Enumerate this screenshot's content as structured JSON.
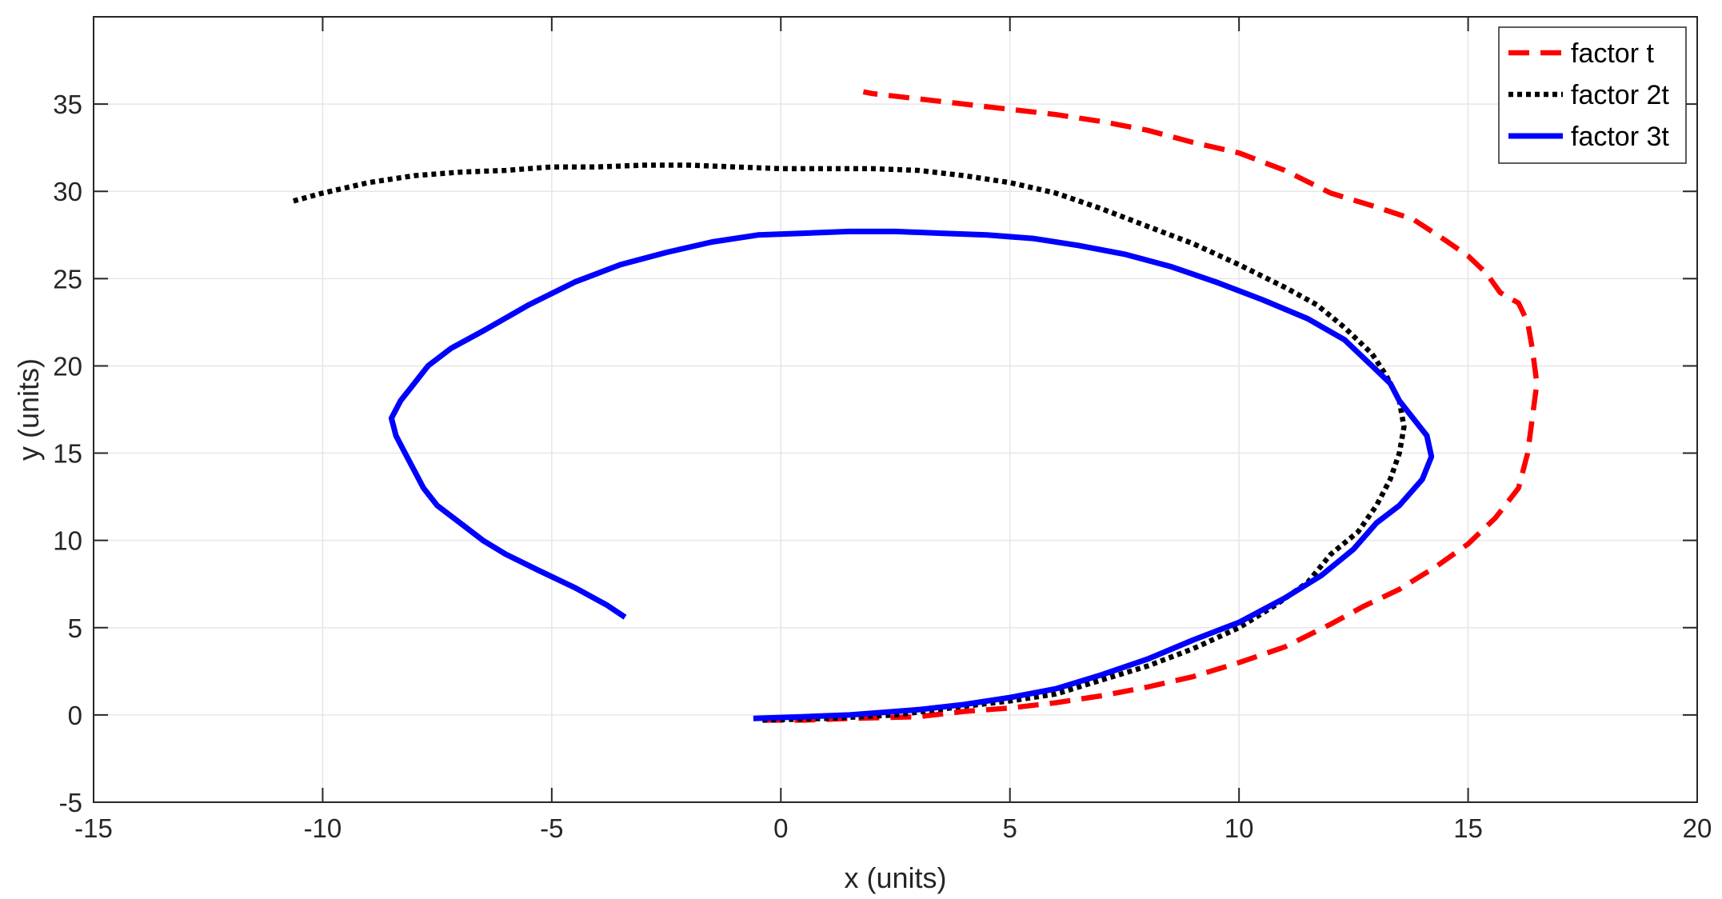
{
  "chart_data": {
    "type": "line",
    "title": "",
    "xlabel": "x (units)",
    "ylabel": "y (units)",
    "xlim": [
      -15,
      20
    ],
    "ylim": [
      -5,
      40
    ],
    "xticks": [
      -15,
      -10,
      -5,
      0,
      5,
      10,
      15,
      20
    ],
    "yticks": [
      -5,
      0,
      5,
      10,
      15,
      20,
      25,
      30,
      35
    ],
    "grid": true,
    "legend_position": "top-right",
    "series": [
      {
        "name": "factor t",
        "color": "#ff0000",
        "style": "dashed",
        "points": [
          [
            -0.4,
            -0.3
          ],
          [
            0.5,
            -0.3
          ],
          [
            1.5,
            -0.2
          ],
          [
            3,
            -0.1
          ],
          [
            4,
            0.2
          ],
          [
            5,
            0.4
          ],
          [
            6,
            0.7
          ],
          [
            7,
            1.1
          ],
          [
            8,
            1.6
          ],
          [
            9,
            2.2
          ],
          [
            10,
            3
          ],
          [
            11,
            3.9
          ],
          [
            12,
            5.2
          ],
          [
            12.7,
            6.2
          ],
          [
            13.5,
            7.2
          ],
          [
            14.3,
            8.5
          ],
          [
            15,
            9.8
          ],
          [
            15.6,
            11.3
          ],
          [
            16.1,
            13
          ],
          [
            16.3,
            15
          ],
          [
            16.4,
            17
          ],
          [
            16.5,
            19
          ],
          [
            16.4,
            21
          ],
          [
            16.3,
            22.5
          ],
          [
            16.1,
            23.6
          ],
          [
            15.7,
            24.2
          ],
          [
            15.4,
            25.3
          ],
          [
            15,
            26.3
          ],
          [
            14.5,
            27.2
          ],
          [
            13.8,
            28.4
          ],
          [
            13,
            29.1
          ],
          [
            12,
            29.9
          ],
          [
            11,
            31.2
          ],
          [
            10,
            32.2
          ],
          [
            9,
            32.8
          ],
          [
            8,
            33.5
          ],
          [
            7,
            34
          ],
          [
            6,
            34.4
          ],
          [
            5,
            34.7
          ],
          [
            4,
            35
          ],
          [
            3,
            35.3
          ],
          [
            2,
            35.6
          ],
          [
            1.8,
            35.7
          ]
        ]
      },
      {
        "name": "factor 2t",
        "color": "#000000",
        "style": "dotted",
        "points": [
          [
            -0.4,
            -0.3
          ],
          [
            1,
            -0.2
          ],
          [
            2.5,
            0
          ],
          [
            4,
            0.5
          ],
          [
            5,
            0.8
          ],
          [
            6,
            1.2
          ],
          [
            7,
            2
          ],
          [
            8,
            2.8
          ],
          [
            9,
            3.8
          ],
          [
            10,
            5
          ],
          [
            10.8,
            6.3
          ],
          [
            11.5,
            7.6
          ],
          [
            12,
            9.2
          ],
          [
            12.6,
            10.5
          ],
          [
            13,
            12
          ],
          [
            13.3,
            13.5
          ],
          [
            13.5,
            15
          ],
          [
            13.6,
            16.5
          ],
          [
            13.5,
            18
          ],
          [
            13.2,
            19.5
          ],
          [
            12.9,
            20.7
          ],
          [
            12.3,
            22.2
          ],
          [
            11.7,
            23.5
          ],
          [
            11,
            24.5
          ],
          [
            10,
            25.8
          ],
          [
            9,
            27
          ],
          [
            8,
            28
          ],
          [
            7,
            29
          ],
          [
            6,
            29.9
          ],
          [
            5,
            30.5
          ],
          [
            4,
            30.9
          ],
          [
            3,
            31.2
          ],
          [
            2,
            31.3
          ],
          [
            1,
            31.3
          ],
          [
            0,
            31.3
          ],
          [
            -1,
            31.4
          ],
          [
            -2,
            31.5
          ],
          [
            -3,
            31.5
          ],
          [
            -4,
            31.4
          ],
          [
            -5,
            31.4
          ],
          [
            -6,
            31.2
          ],
          [
            -7,
            31.1
          ],
          [
            -8,
            30.9
          ],
          [
            -9,
            30.5
          ],
          [
            -10,
            29.9
          ],
          [
            -10.7,
            29.4
          ]
        ]
      },
      {
        "name": "factor 3t",
        "color": "#0000ff",
        "style": "solid",
        "points": [
          [
            -0.6,
            -0.2
          ],
          [
            0.5,
            -0.1
          ],
          [
            1.5,
            0
          ],
          [
            3,
            0.3
          ],
          [
            4,
            0.6
          ],
          [
            5,
            1
          ],
          [
            6,
            1.5
          ],
          [
            7,
            2.3
          ],
          [
            8,
            3.2
          ],
          [
            9,
            4.3
          ],
          [
            10,
            5.3
          ],
          [
            11,
            6.7
          ],
          [
            11.8,
            8
          ],
          [
            12.5,
            9.5
          ],
          [
            13,
            11
          ],
          [
            13.5,
            12
          ],
          [
            14,
            13.5
          ],
          [
            14.2,
            14.8
          ],
          [
            14.1,
            16
          ],
          [
            13.8,
            17
          ],
          [
            13.5,
            18
          ],
          [
            13.3,
            19
          ],
          [
            12.9,
            20
          ],
          [
            12.3,
            21.5
          ],
          [
            11.5,
            22.7
          ],
          [
            10.5,
            23.8
          ],
          [
            9.5,
            24.8
          ],
          [
            8.5,
            25.7
          ],
          [
            7.5,
            26.4
          ],
          [
            6.5,
            26.9
          ],
          [
            5.5,
            27.3
          ],
          [
            4.5,
            27.5
          ],
          [
            3.5,
            27.6
          ],
          [
            2.5,
            27.7
          ],
          [
            1.5,
            27.7
          ],
          [
            0.5,
            27.6
          ],
          [
            -0.5,
            27.5
          ],
          [
            -1.5,
            27.1
          ],
          [
            -2.5,
            26.5
          ],
          [
            -3.5,
            25.8
          ],
          [
            -4.5,
            24.8
          ],
          [
            -5.5,
            23.5
          ],
          [
            -6.5,
            22
          ],
          [
            -7.2,
            21
          ],
          [
            -7.7,
            20
          ],
          [
            -8,
            19
          ],
          [
            -8.3,
            18
          ],
          [
            -8.5,
            17
          ],
          [
            -8.4,
            16
          ],
          [
            -8.2,
            15
          ],
          [
            -8,
            14
          ],
          [
            -7.8,
            13
          ],
          [
            -7.5,
            12
          ],
          [
            -7,
            11
          ],
          [
            -6.5,
            10
          ],
          [
            -6,
            9.2
          ],
          [
            -5.3,
            8.3
          ],
          [
            -4.5,
            7.3
          ],
          [
            -3.8,
            6.3
          ],
          [
            -3.4,
            5.6
          ]
        ]
      }
    ]
  }
}
